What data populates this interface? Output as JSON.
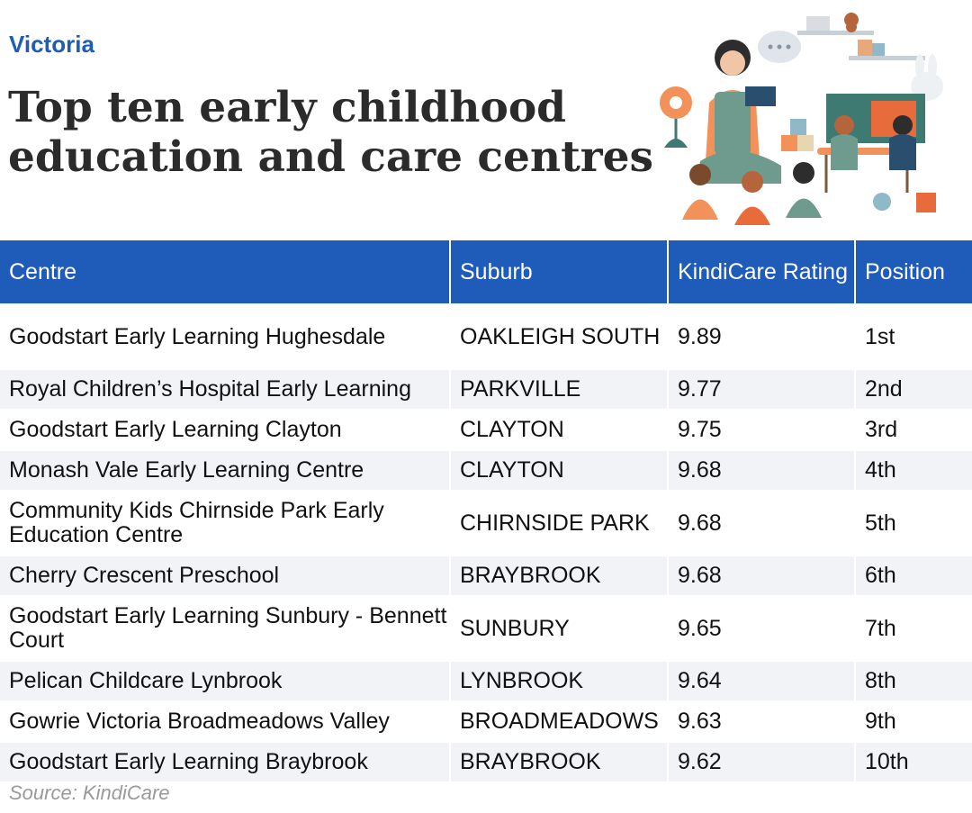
{
  "region": "Victoria",
  "title": "Top ten early childhood education and care centres",
  "illustration": "teacher-reading-to-children",
  "table": {
    "headers": [
      "Centre",
      "Suburb",
      "KindiCare Rating",
      "Position"
    ],
    "rows": [
      {
        "centre": "Goodstart Early Learning Hughesdale",
        "suburb": "OAKLEIGH SOUTH",
        "rating": "9.89",
        "position": "1st"
      },
      {
        "centre": "Royal Children’s Hospital Early Learning",
        "suburb": "PARKVILLE",
        "rating": "9.77",
        "position": "2nd"
      },
      {
        "centre": "Goodstart Early Learning Clayton",
        "suburb": "CLAYTON",
        "rating": "9.75",
        "position": "3rd"
      },
      {
        "centre": "Monash Vale Early Learning Centre",
        "suburb": "CLAYTON",
        "rating": "9.68",
        "position": "4th"
      },
      {
        "centre": "Community Kids Chirnside Park Early Education Centre",
        "suburb": "CHIRNSIDE PARK",
        "rating": "9.68",
        "position": "5th"
      },
      {
        "centre": "Cherry Crescent Preschool",
        "suburb": "BRAYBROOK",
        "rating": "9.68",
        "position": "6th"
      },
      {
        "centre": "Goodstart Early Learning Sunbury - Bennett Court",
        "suburb": "SUNBURY",
        "rating": "9.65",
        "position": "7th"
      },
      {
        "centre": "Pelican Childcare Lynbrook",
        "suburb": "LYNBROOK",
        "rating": "9.64",
        "position": "8th"
      },
      {
        "centre": "Gowrie Victoria Broadmeadows Valley",
        "suburb": "BROADMEADOWS",
        "rating": "9.63",
        "position": "9th"
      },
      {
        "centre": "Goodstart Early Learning Braybrook",
        "suburb": "BRAYBROOK",
        "rating": "9.62",
        "position": "10th"
      }
    ]
  },
  "source": "Source: KindiCare",
  "colors": {
    "accent": "#1f5bb8",
    "title": "#2b2b2b",
    "row_shade": "#f1f3f7",
    "source": "#9a9a9a"
  }
}
